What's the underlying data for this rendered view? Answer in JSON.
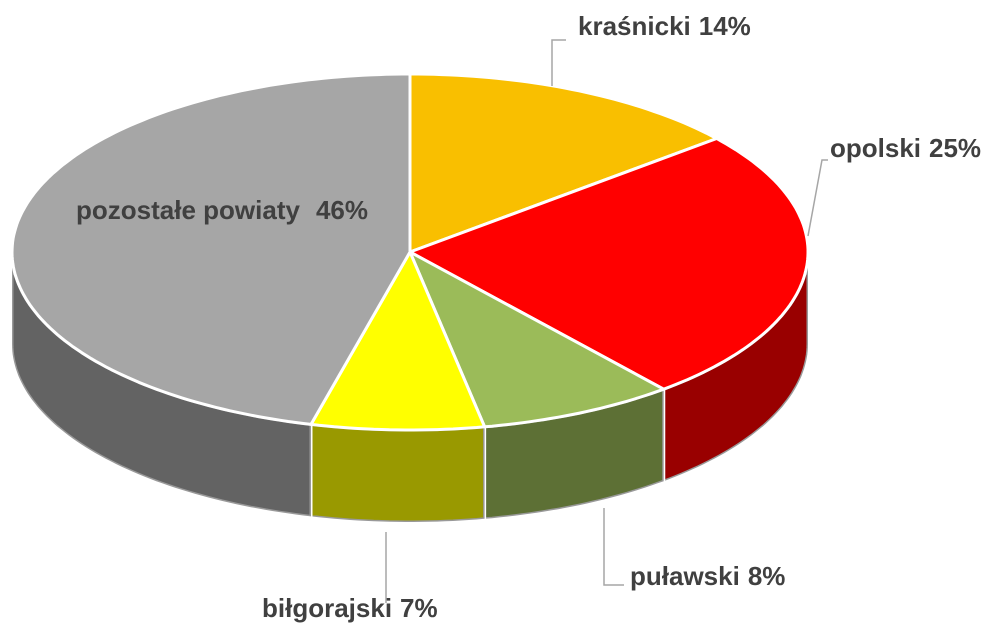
{
  "chart_data": {
    "type": "pie3d",
    "categories": [
      "kraśnicki",
      "opolski",
      "puławski",
      "biłgorajski",
      "pozostałe powiaty"
    ],
    "values": [
      14,
      25,
      8,
      7,
      46
    ],
    "value_labels": [
      "14%",
      "25%",
      "8%",
      "7%",
      "46%"
    ],
    "colors": [
      "#f9bf00",
      "#ff0000",
      "#9bbb59",
      "#ffff00",
      "#a6a6a6"
    ]
  }
}
